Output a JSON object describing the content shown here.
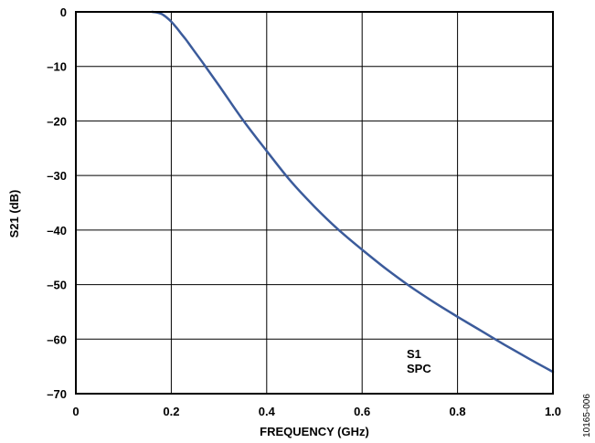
{
  "chart_data": {
    "type": "line",
    "title": "",
    "xlabel": "FREQUENCY (GHz)",
    "ylabel": "S21 (dB)",
    "xlim": [
      0,
      1.0
    ],
    "ylim": [
      -70,
      0
    ],
    "x_ticks": [
      "0",
      "0.2",
      "0.4",
      "0.6",
      "0.8",
      "1.0"
    ],
    "y_ticks": [
      "0",
      "–10",
      "–20",
      "–30",
      "–40",
      "–50",
      "–60",
      "–70"
    ],
    "grid": true,
    "series": [
      {
        "color": "#3b5b9b",
        "x": [
          0.16,
          0.17,
          0.18,
          0.19,
          0.2,
          0.21,
          0.22,
          0.23,
          0.24,
          0.25,
          0.27,
          0.3,
          0.35,
          0.4,
          0.45,
          0.5,
          0.55,
          0.6,
          0.65,
          0.7,
          0.75,
          0.8,
          0.85,
          0.9,
          0.95,
          1.0
        ],
        "y": [
          0,
          -0.1,
          -0.4,
          -1.0,
          -1.8,
          -2.8,
          -3.9,
          -5.0,
          -6.2,
          -7.4,
          -9.8,
          -13.5,
          -19.8,
          -25.5,
          -31.0,
          -35.7,
          -39.9,
          -43.6,
          -47.1,
          -50.3,
          -53.2,
          -55.9,
          -58.5,
          -61.1,
          -63.6,
          -66.0
        ]
      }
    ],
    "annotations": [
      "S1",
      "SPC"
    ],
    "figure_id": "10165-006"
  }
}
